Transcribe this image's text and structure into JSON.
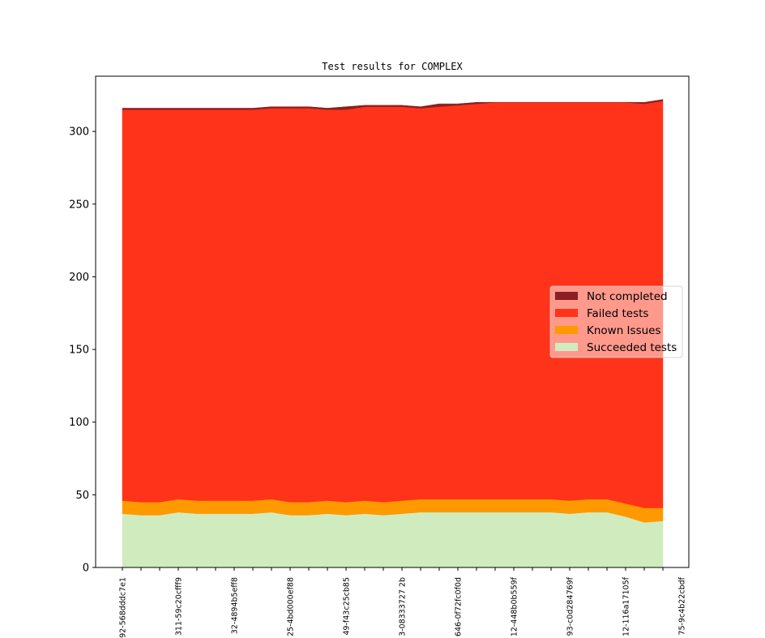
{
  "chart_data": {
    "type": "area",
    "stacked": true,
    "title": "Test results for COMPLEX",
    "xlabel": "",
    "ylabel": "",
    "ylim": [
      0,
      338
    ],
    "yticks": [
      0,
      50,
      100,
      150,
      200,
      250,
      300
    ],
    "x_tick_labels": [
      "92-568dddc7e1",
      "311-59c20cfff9",
      "32-4894b5eff8",
      "25-4bd000ef88",
      "49-f43c25cb85",
      "3-08333727 2b",
      "646-0f72fc0f0d",
      "12-448b0b559f",
      "93-c0d284769f",
      "12-116a17105f",
      "75-9c4b22cbdf"
    ],
    "legend_position": "center-right",
    "grid": false,
    "series": [
      {
        "name": "Succeeded tests",
        "color": "#d0ecbf",
        "values": [
          37,
          36,
          36,
          38,
          37,
          37,
          37,
          37,
          38,
          36,
          36,
          37,
          36,
          37,
          36,
          37,
          38,
          38,
          38,
          38,
          38,
          38,
          38,
          38,
          37,
          38,
          38,
          35,
          31,
          32
        ]
      },
      {
        "name": "Known Issues",
        "color": "#ff9900",
        "values": [
          9,
          9,
          9,
          9,
          9,
          9,
          9,
          9,
          9,
          9,
          9,
          9,
          9,
          9,
          9,
          9,
          9,
          9,
          9,
          9,
          9,
          9,
          9,
          9,
          9,
          9,
          9,
          9,
          10,
          9
        ]
      },
      {
        "name": "Failed tests",
        "color": "#ff3319",
        "values": [
          269,
          270,
          270,
          268,
          269,
          269,
          269,
          269,
          269,
          271,
          271,
          269,
          270,
          271,
          272,
          271,
          269,
          270,
          271,
          272,
          273,
          273,
          273,
          273,
          274,
          273,
          273,
          276,
          278,
          280
        ]
      },
      {
        "name": "Not completed",
        "color": "#8c1f1f",
        "values": [
          1,
          1,
          1,
          1,
          1,
          1,
          1,
          1,
          1,
          1,
          1,
          1,
          2,
          1,
          1,
          1,
          1,
          2,
          1,
          1,
          0,
          0,
          0,
          0,
          0,
          0,
          0,
          0,
          1,
          1
        ]
      }
    ]
  }
}
